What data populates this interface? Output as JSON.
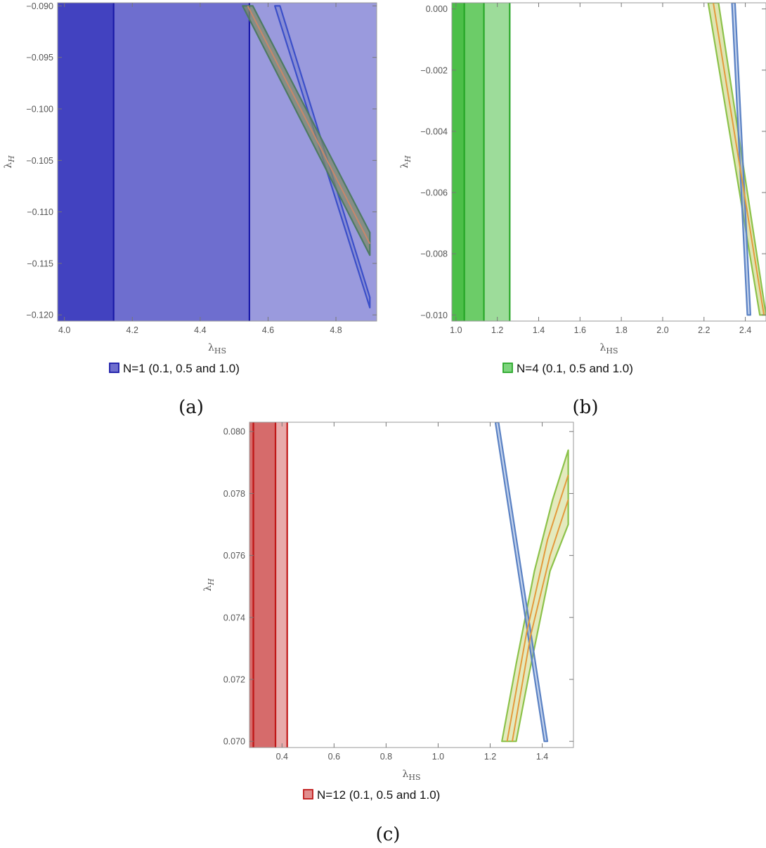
{
  "chart_data": [
    {
      "type": "area",
      "panel_caption": "(a)",
      "xlabel": "λHS",
      "ylabel": "λH",
      "xlim": [
        3.98,
        4.92
      ],
      "ylim": [
        -0.1206,
        -0.0897
      ],
      "xticks": [
        4.0,
        4.2,
        4.4,
        4.6,
        4.8
      ],
      "xtick_labels": [
        "4.0",
        "4.2",
        "4.4",
        "4.6",
        "4.8"
      ],
      "yticks": [
        -0.09,
        -0.095,
        -0.1,
        -0.105,
        -0.11,
        -0.115,
        -0.12
      ],
      "ytick_labels": [
        "−0.090",
        "−0.095",
        "−0.100",
        "−0.105",
        "−0.110",
        "−0.115",
        "−0.120"
      ],
      "legend": {
        "label": "N=1 (0.1, 0.5 and 1.0)",
        "color": "#4a4ac2",
        "position": "bottom"
      },
      "regions": [
        {
          "name": "1.0",
          "x_min": 3.98,
          "x_max": 4.92,
          "fill": "#9a9add",
          "line": "none"
        },
        {
          "name": "0.5",
          "x_min": 3.98,
          "x_max": 4.545,
          "fill": "#6e6ecf",
          "line": "#1a1aa8"
        },
        {
          "name": "0.1",
          "x_min": 3.98,
          "x_max": 4.145,
          "fill": "#4242c0",
          "line": "#1a1aa8"
        }
      ],
      "bands": [
        {
          "name": "blue-band",
          "fill": "#6a78c6",
          "fill_opacity": 0.35,
          "stroke": "#3b4fc9",
          "points": [
            [
              4.62,
              -0.09
            ],
            [
              4.635,
              -0.09
            ],
            [
              4.9,
              -0.1183
            ],
            [
              4.9,
              -0.1193
            ]
          ]
        },
        {
          "name": "green-band",
          "fill": "#7e8a6a",
          "fill_opacity": 0.75,
          "stroke": "#4d7a63",
          "points": [
            [
              4.525,
              -0.09
            ],
            [
              4.555,
              -0.09
            ],
            [
              4.9,
              -0.112
            ],
            [
              4.9,
              -0.1142
            ]
          ]
        }
      ],
      "lines": [
        {
          "name": "orange-center",
          "color": "#c8876a",
          "points": [
            [
              4.54,
              -0.09
            ],
            [
              4.9,
              -0.1131
            ]
          ]
        }
      ]
    },
    {
      "type": "area",
      "panel_caption": "(b)",
      "xlabel": "λHS",
      "ylabel": "λH",
      "xlim": [
        0.98,
        2.5
      ],
      "ylim": [
        -0.0102,
        0.0002
      ],
      "xticks": [
        1.0,
        1.2,
        1.4,
        1.6,
        1.8,
        2.0,
        2.2,
        2.4
      ],
      "xtick_labels": [
        "1.0",
        "1.2",
        "1.4",
        "1.6",
        "1.8",
        "2.0",
        "2.2",
        "2.4"
      ],
      "yticks": [
        0.0,
        -0.002,
        -0.004,
        -0.006,
        -0.008,
        -0.01
      ],
      "ytick_labels": [
        "0.000",
        "−0.002",
        "−0.004",
        "−0.006",
        "−0.008",
        "−0.010"
      ],
      "legend": {
        "label": "N=4 (0.1, 0.5 and 1.0)",
        "color": "#5cc95c",
        "position": "bottom"
      },
      "regions": [
        {
          "name": "1.0",
          "x_min": 0.98,
          "x_max": 1.26,
          "fill": "#9ddc9a",
          "line": "#2aa82a"
        },
        {
          "name": "0.5",
          "x_min": 0.98,
          "x_max": 1.135,
          "fill": "#6ccc68",
          "line": "#2aa82a"
        },
        {
          "name": "0.1",
          "x_min": 0.98,
          "x_max": 1.04,
          "fill": "#4cbf48",
          "line": "#2aa82a"
        }
      ],
      "bands": [
        {
          "name": "green-band",
          "fill": "#d9e0a6",
          "fill_opacity": 0.85,
          "stroke": "#8cc24a",
          "points": [
            [
              2.22,
              0.0002
            ],
            [
              2.27,
              0.0002
            ],
            [
              2.5,
              -0.01
            ],
            [
              2.47,
              -0.01
            ]
          ]
        },
        {
          "name": "blue-band",
          "fill": "#6a8ed0",
          "fill_opacity": 0.4,
          "stroke": "#5b82c4",
          "points": [
            [
              2.335,
              0.0002
            ],
            [
              2.35,
              0.0002
            ],
            [
              2.425,
              -0.01
            ],
            [
              2.41,
              -0.01
            ]
          ]
        }
      ],
      "lines": [
        {
          "name": "orange-center",
          "color": "#e39a3c",
          "points": [
            [
              2.245,
              0.0002
            ],
            [
              2.49,
              -0.01
            ]
          ]
        }
      ]
    },
    {
      "type": "area",
      "panel_caption": "(c)",
      "xlabel": "λHS",
      "ylabel": "λH",
      "xlim": [
        0.275,
        1.52
      ],
      "ylim": [
        0.0698,
        0.0803
      ],
      "xticks": [
        0.4,
        0.6,
        0.8,
        1.0,
        1.2,
        1.4
      ],
      "xtick_labels": [
        "0.4",
        "0.6",
        "0.8",
        "1.0",
        "1.2",
        "1.4"
      ],
      "yticks": [
        0.07,
        0.072,
        0.074,
        0.076,
        0.078,
        0.08
      ],
      "ytick_labels": [
        "0.070",
        "0.072",
        "0.074",
        "0.076",
        "0.078",
        "0.080"
      ],
      "legend": {
        "label": "N=12 (0.1, 0.5 and 1.0)",
        "color": "#d97070",
        "position": "bottom"
      },
      "regions": [
        {
          "name": "1.0",
          "x_min": 0.275,
          "x_max": 0.42,
          "fill": "#e8aaaa",
          "line": "#c01818"
        },
        {
          "name": "0.5",
          "x_min": 0.275,
          "x_max": 0.375,
          "fill": "#d66b6b",
          "line": "#c01818"
        },
        {
          "name": "0.1",
          "x_min": 0.275,
          "x_max": 0.29,
          "fill": "#d66b6b",
          "line": "#c01818"
        }
      ],
      "bands": [
        {
          "name": "green-band",
          "fill": "#dfe6b3",
          "fill_opacity": 0.85,
          "stroke": "#8cc24a",
          "points": [
            [
              1.245,
              0.07
            ],
            [
              1.3,
              0.07
            ],
            [
              1.35,
              0.0722
            ],
            [
              1.43,
              0.0755
            ],
            [
              1.5,
              0.077
            ],
            [
              1.5,
              0.0794
            ],
            [
              1.44,
              0.0778
            ],
            [
              1.37,
              0.0755
            ],
            [
              1.3,
              0.0725
            ]
          ]
        },
        {
          "name": "blue-band",
          "fill": "#6a8ed0",
          "fill_opacity": 0.4,
          "stroke": "#5b82c4",
          "points": [
            [
              1.22,
              0.0803
            ],
            [
              1.232,
              0.0803
            ],
            [
              1.42,
              0.07
            ],
            [
              1.408,
              0.07
            ]
          ]
        }
      ],
      "lines": [
        {
          "name": "orange-center-upper",
          "color": "#e39a3c",
          "points": [
            [
              1.265,
              0.07
            ],
            [
              1.34,
              0.0735
            ],
            [
              1.42,
              0.0765
            ],
            [
              1.5,
              0.0786
            ]
          ]
        },
        {
          "name": "orange-center-lower",
          "color": "#e39a3c",
          "points": [
            [
              1.285,
              0.07
            ],
            [
              1.355,
              0.0734
            ],
            [
              1.43,
              0.076
            ],
            [
              1.5,
              0.0778
            ]
          ]
        }
      ]
    }
  ]
}
